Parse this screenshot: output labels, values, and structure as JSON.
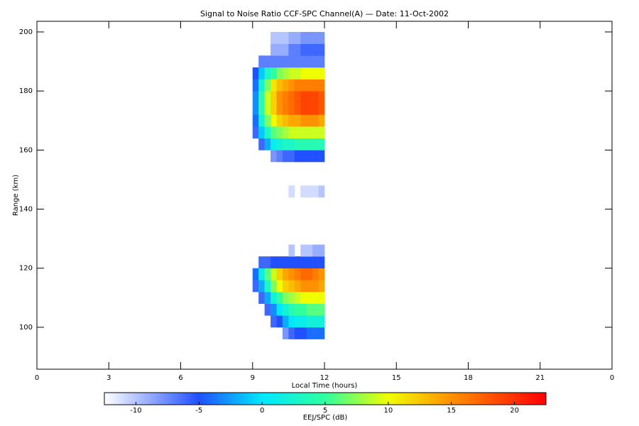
{
  "chart_data": {
    "type": "heatmap",
    "title": "Signal to Noise Ratio CCF-SPC Channel(A) — Date: 11-Oct-2002",
    "xlabel": "Local Time (hours)",
    "ylabel": "Range (km)",
    "xlim": [
      0,
      24
    ],
    "xticks": [
      0,
      3,
      6,
      9,
      12,
      15,
      18,
      21,
      {
        "value": 24,
        "label": "0"
      }
    ],
    "ylim": [
      85.8,
      203.6
    ],
    "yticks": [
      100,
      120,
      140,
      160,
      180,
      200
    ],
    "xbins": [
      9,
      9.25,
      9.5,
      9.75,
      10,
      10.25,
      10.5,
      10.75,
      11,
      11.25,
      11.5,
      11.75,
      12
    ],
    "ybins": [
      96,
      100,
      104,
      108,
      112,
      116,
      120,
      124,
      128,
      132,
      136,
      140,
      144,
      148,
      152,
      156,
      160,
      164,
      168,
      172,
      176,
      180,
      184,
      188,
      192,
      196,
      200
    ],
    "z": [
      [
        null,
        null,
        null,
        null,
        null,
        -8,
        -6,
        -5,
        -5,
        -4,
        -4,
        -4
      ],
      [
        null,
        null,
        null,
        -6,
        -5,
        -2,
        0,
        1,
        1,
        2,
        2,
        2
      ],
      [
        null,
        null,
        -6,
        -3,
        0,
        2,
        4,
        5,
        5,
        6,
        6,
        6
      ],
      [
        null,
        -6,
        -2,
        2,
        5,
        7,
        8,
        9,
        10,
        10,
        10,
        10
      ],
      [
        -6,
        -2,
        3,
        7,
        10,
        12,
        13,
        14,
        15,
        15,
        15,
        14
      ],
      [
        -4,
        1,
        6,
        9,
        12,
        14,
        15,
        16,
        17,
        17,
        16,
        15
      ],
      [
        null,
        -6,
        -6,
        -5,
        -5,
        -5,
        -5,
        -5,
        -5,
        -5,
        -5,
        -5
      ],
      [
        null,
        null,
        null,
        null,
        null,
        null,
        -10,
        null,
        -10,
        -10,
        -9,
        -9
      ],
      [
        null,
        null,
        null,
        null,
        null,
        null,
        null,
        null,
        null,
        null,
        null,
        null
      ],
      [
        null,
        null,
        null,
        null,
        null,
        null,
        null,
        null,
        null,
        null,
        null,
        null
      ],
      [
        null,
        null,
        null,
        null,
        null,
        null,
        null,
        null,
        null,
        null,
        null,
        null
      ],
      [
        null,
        null,
        null,
        null,
        null,
        null,
        null,
        null,
        null,
        null,
        null,
        null
      ],
      [
        null,
        null,
        null,
        null,
        null,
        null,
        -11,
        null,
        -11,
        -11,
        -11,
        -10
      ],
      [
        null,
        null,
        null,
        null,
        null,
        null,
        null,
        null,
        null,
        null,
        null,
        null
      ],
      [
        null,
        null,
        null,
        null,
        null,
        null,
        null,
        null,
        null,
        null,
        null,
        null
      ],
      [
        null,
        null,
        null,
        -8,
        -7,
        -6,
        -6,
        -5,
        -5,
        -5,
        -5,
        -5
      ],
      [
        null,
        -6,
        -2,
        1,
        2,
        3,
        3,
        4,
        4,
        4,
        4,
        4
      ],
      [
        -6,
        -1,
        3,
        6,
        7,
        8,
        9,
        9,
        9,
        9,
        9,
        9
      ],
      [
        -4,
        2,
        7,
        10,
        12,
        13,
        14,
        14,
        15,
        15,
        15,
        14
      ],
      [
        -3,
        4,
        9,
        12,
        15,
        16,
        17,
        18,
        19,
        19,
        19,
        18
      ],
      [
        -3,
        4,
        9,
        12,
        15,
        16,
        17,
        18,
        19,
        19,
        19,
        18
      ],
      [
        -4,
        2,
        7,
        11,
        13,
        14,
        15,
        16,
        16,
        16,
        16,
        16
      ],
      [
        -5,
        -1,
        3,
        5,
        7,
        8,
        9,
        9,
        10,
        10,
        10,
        10
      ],
      [
        null,
        -7,
        -7,
        -7,
        -7,
        -7,
        -7,
        -7,
        -7,
        -7,
        -7,
        -7
      ],
      [
        null,
        null,
        null,
        -9,
        -9,
        -9,
        -7,
        -7,
        -6,
        -6,
        -6,
        -6
      ],
      [
        null,
        null,
        null,
        -10,
        -10,
        -10,
        -9,
        -9,
        -8,
        -8,
        -8,
        -8
      ]
    ],
    "clim": [
      -12.5,
      22.5
    ],
    "colorbar_ticks": [
      -10,
      -5,
      0,
      5,
      10,
      15,
      20
    ],
    "colorbar_label": "EEJ/SPC (dB)",
    "colormap": [
      {
        "value": -12.5,
        "color": "#ffffff"
      },
      {
        "value": -5,
        "color": "#2050ff"
      },
      {
        "value": 0,
        "color": "#00e8ff"
      },
      {
        "value": 5,
        "color": "#30ffa0"
      },
      {
        "value": 10,
        "color": "#f0ff00"
      },
      {
        "value": 15,
        "color": "#ff9000"
      },
      {
        "value": 22.5,
        "color": "#ff0000"
      }
    ]
  }
}
